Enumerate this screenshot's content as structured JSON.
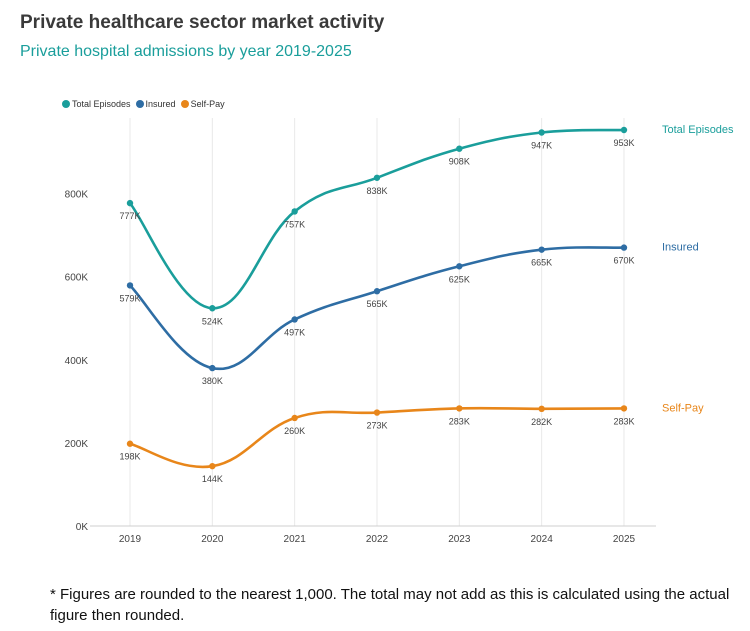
{
  "title": "Private healthcare sector market activity",
  "subtitle": "Private hospital admissions by year 2019-2025",
  "footnote": "* Figures are rounded to the nearest 1,000. The total may not add as this is calculated using the actual figure then rounded.",
  "colors": {
    "subtitle": "#1a9e9b",
    "grid": "#e8e8e8"
  },
  "chart_data": {
    "type": "line",
    "categories": [
      "2019",
      "2020",
      "2021",
      "2022",
      "2023",
      "2024",
      "2025"
    ],
    "ylim": [
      0,
      953000
    ],
    "yticks": [
      0,
      200000,
      400000,
      600000,
      800000
    ],
    "ytick_labels": [
      "0K",
      "200K",
      "400K",
      "600K",
      "800K"
    ],
    "grid": "vertical",
    "legend": "top-left",
    "smooth": true,
    "series": [
      {
        "name": "Total Episodes",
        "color": "#1a9e9b",
        "values": [
          777000,
          524000,
          757000,
          838000,
          908000,
          947000,
          953000
        ],
        "labels": [
          "777K",
          "524K",
          "757K",
          "838K",
          "908K",
          "947K",
          "953K"
        ]
      },
      {
        "name": "Insured",
        "color": "#2e6da4",
        "values": [
          579000,
          380000,
          497000,
          565000,
          625000,
          665000,
          670000
        ],
        "labels": [
          "579K",
          "380K",
          "497K",
          "565K",
          "625K",
          "665K",
          "670K"
        ]
      },
      {
        "name": "Self-Pay",
        "color": "#e8861a",
        "values": [
          198000,
          144000,
          260000,
          273000,
          283000,
          282000,
          283000
        ],
        "labels": [
          "198K",
          "144K",
          "260K",
          "273K",
          "283K",
          "282K",
          "283K"
        ]
      }
    ]
  }
}
